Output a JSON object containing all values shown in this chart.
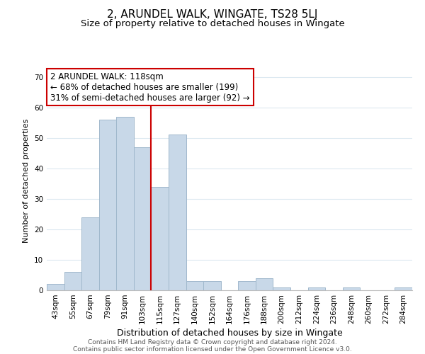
{
  "title": "2, ARUNDEL WALK, WINGATE, TS28 5LJ",
  "subtitle": "Size of property relative to detached houses in Wingate",
  "xlabel": "Distribution of detached houses by size in Wingate",
  "ylabel": "Number of detached properties",
  "bin_labels": [
    "43sqm",
    "55sqm",
    "67sqm",
    "79sqm",
    "91sqm",
    "103sqm",
    "115sqm",
    "127sqm",
    "140sqm",
    "152sqm",
    "164sqm",
    "176sqm",
    "188sqm",
    "200sqm",
    "212sqm",
    "224sqm",
    "236sqm",
    "248sqm",
    "260sqm",
    "272sqm",
    "284sqm"
  ],
  "bar_values": [
    2,
    6,
    24,
    56,
    57,
    47,
    34,
    51,
    3,
    3,
    0,
    3,
    4,
    1,
    0,
    1,
    0,
    1,
    0,
    0,
    1
  ],
  "bar_color": "#c8d8e8",
  "bar_edge_color": "#a0b8cc",
  "vline_color": "#cc0000",
  "annotation_line1": "2 ARUNDEL WALK: 118sqm",
  "annotation_line2": "← 68% of detached houses are smaller (199)",
  "annotation_line3": "31% of semi-detached houses are larger (92) →",
  "annotation_box_color": "#ffffff",
  "annotation_box_edge_color": "#cc0000",
  "ylim": [
    0,
    72
  ],
  "yticks": [
    0,
    10,
    20,
    30,
    40,
    50,
    60,
    70
  ],
  "footer_line1": "Contains HM Land Registry data © Crown copyright and database right 2024.",
  "footer_line2": "Contains public sector information licensed under the Open Government Licence v3.0.",
  "title_fontsize": 11,
  "subtitle_fontsize": 9.5,
  "xlabel_fontsize": 9,
  "ylabel_fontsize": 8,
  "tick_fontsize": 7.5,
  "annotation_fontsize": 8.5,
  "footer_fontsize": 6.5,
  "bg_color": "#ffffff",
  "grid_color": "#dce8f0"
}
